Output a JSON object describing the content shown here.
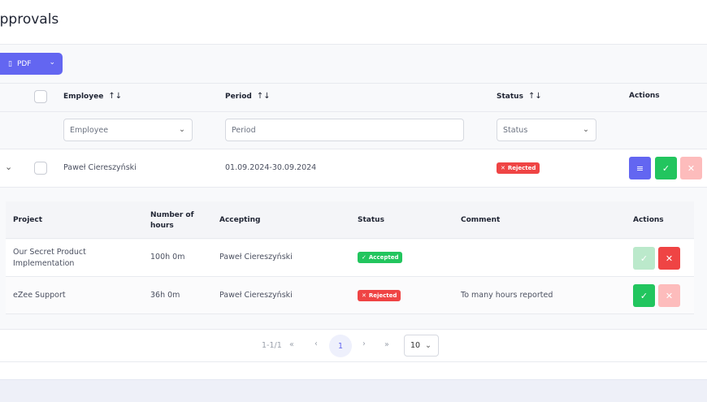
{
  "page": {
    "title": "Approvals"
  },
  "toolbar": {
    "export_label": "PDF",
    "export_icon": "file-pdf-icon"
  },
  "table": {
    "headers": {
      "employee": "Employee",
      "period": "Period",
      "status": "Status",
      "actions": "Actions"
    },
    "sort_glyph": "↑↓",
    "filters": {
      "employee_placeholder": "Employee",
      "period_placeholder": "Period",
      "status_placeholder": "Status"
    },
    "rows": [
      {
        "employee": "Paweł Ciereszyński",
        "period": "01.09.2024-30.09.2024",
        "status": "Rejected",
        "status_color": "#ef4444"
      }
    ]
  },
  "subtable": {
    "headers": {
      "project": "Project",
      "hours": "Number of hours",
      "accepting": "Accepting",
      "status": "Status",
      "comment": "Comment",
      "actions": "Actions"
    },
    "rows": [
      {
        "project": "Our Secret Product Implementation",
        "hours": "100h 0m",
        "accepting": "Paweł Ciereszyński",
        "status": "Accepted",
        "status_color": "#22c55e",
        "comment": ""
      },
      {
        "project": "eZee Support",
        "hours": "36h 0m",
        "accepting": "Paweł Ciereszyński",
        "status": "Rejected",
        "status_color": "#ef4444",
        "comment": "To many hours reported"
      }
    ]
  },
  "pagination": {
    "range": "1-1/1",
    "first": "«",
    "prev": "‹",
    "current": "1",
    "next": "›",
    "last": "»",
    "page_size": "10"
  },
  "colors": {
    "primary": "#6366f1",
    "success": "#22c55e",
    "danger": "#ef4444"
  }
}
